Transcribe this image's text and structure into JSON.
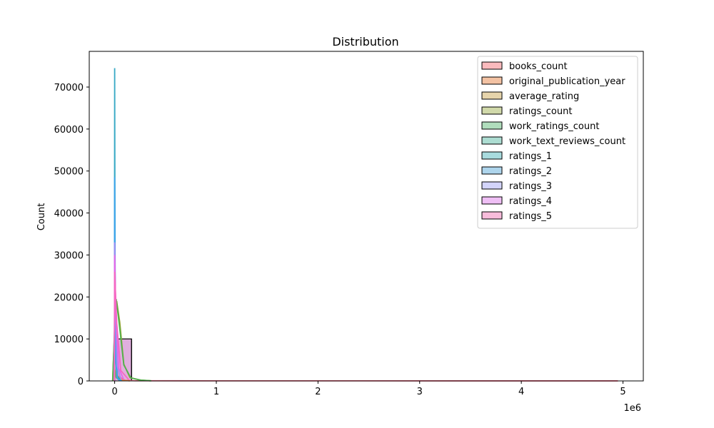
{
  "chart_data": {
    "type": "bar",
    "title": "Distribution",
    "xlabel": "",
    "ylabel": "Count",
    "x_offset_label": "1e6",
    "xlim": [
      -250000,
      5200000
    ],
    "ylim": [
      0,
      78500
    ],
    "x_ticks": [
      {
        "value": 0,
        "label": "0"
      },
      {
        "value": 1000000,
        "label": "1"
      },
      {
        "value": 2000000,
        "label": "2"
      },
      {
        "value": 3000000,
        "label": "3"
      },
      {
        "value": 4000000,
        "label": "4"
      },
      {
        "value": 5000000,
        "label": "5"
      }
    ],
    "y_ticks": [
      {
        "value": 0,
        "label": "0"
      },
      {
        "value": 10000,
        "label": "10000"
      },
      {
        "value": 20000,
        "label": "20000"
      },
      {
        "value": 30000,
        "label": "30000"
      },
      {
        "value": 40000,
        "label": "40000"
      },
      {
        "value": 50000,
        "label": "50000"
      },
      {
        "value": 60000,
        "label": "60000"
      },
      {
        "value": 70000,
        "label": "70000"
      }
    ],
    "grid": false,
    "legend_position": "top-right",
    "series": [
      {
        "name": "books_count",
        "color": "#f8a3a7",
        "line_color": "#f77189",
        "bars": [
          {
            "x0": 0,
            "x1": 165000,
            "count": 320
          },
          {
            "x0": 165000,
            "x1": 4950000,
            "count": 0
          }
        ],
        "kde": [
          [
            -10000,
            0
          ],
          [
            0,
            9000
          ],
          [
            30000,
            1200
          ],
          [
            100000,
            150
          ],
          [
            200000,
            40
          ],
          [
            1000000,
            20
          ],
          [
            4950000,
            10
          ]
        ]
      },
      {
        "name": "original_publication_year",
        "color": "#efae84",
        "line_color": "#e98a3c",
        "bars": [
          {
            "x0": 0,
            "x1": 165000,
            "count": 9950
          }
        ],
        "kde": [
          [
            -5000,
            0
          ],
          [
            0,
            2800
          ],
          [
            20000,
            1200
          ],
          [
            60000,
            200
          ],
          [
            150000,
            20
          ]
        ]
      },
      {
        "name": "average_rating",
        "color": "#ddc58f",
        "line_color": "#bb9832",
        "bars": [
          {
            "x0": 0,
            "x1": 165000,
            "count": 10000
          }
        ],
        "kde": [
          [
            -5000,
            0
          ],
          [
            0,
            2500
          ],
          [
            15000,
            800
          ],
          [
            50000,
            80
          ]
        ]
      },
      {
        "name": "ratings_count",
        "color": "#c2cc8e",
        "line_color": "#97a431",
        "bars": [
          {
            "x0": 0,
            "x1": 165000,
            "count": 9500
          }
        ],
        "kde": [
          [
            -20000,
            0
          ],
          [
            0,
            12000
          ],
          [
            20000,
            19000
          ],
          [
            50000,
            14000
          ],
          [
            90000,
            4000
          ],
          [
            150000,
            800
          ],
          [
            250000,
            200
          ],
          [
            350000,
            40
          ]
        ]
      },
      {
        "name": "work_ratings_count",
        "color": "#95d1a6",
        "line_color": "#50b14e",
        "bars": [
          {
            "x0": 0,
            "x1": 165000,
            "count": 9500
          }
        ],
        "kde": [
          [
            -20000,
            0
          ],
          [
            0,
            13000
          ],
          [
            15000,
            19500
          ],
          [
            45000,
            13500
          ],
          [
            90000,
            3800
          ],
          [
            160000,
            700
          ],
          [
            260000,
            180
          ],
          [
            360000,
            30
          ]
        ]
      },
      {
        "name": "work_text_reviews_count",
        "color": "#91d2c3",
        "line_color": "#36ad8b",
        "bars": [
          {
            "x0": 0,
            "x1": 165000,
            "count": 10000
          }
        ],
        "kde": [
          [
            -5000,
            0
          ],
          [
            0,
            15000
          ],
          [
            8000,
            6000
          ],
          [
            25000,
            1200
          ],
          [
            60000,
            150
          ]
        ]
      },
      {
        "name": "ratings_1",
        "color": "#8bcfd3",
        "line_color": "#38a9c5",
        "bars": [
          {
            "x0": 0,
            "x1": 165000,
            "count": 10000
          }
        ],
        "kde": [
          [
            -2000,
            0
          ],
          [
            0,
            74500
          ],
          [
            3000,
            35000
          ],
          [
            8000,
            8000
          ],
          [
            20000,
            800
          ],
          [
            50000,
            50
          ]
        ]
      },
      {
        "name": "ratings_2",
        "color": "#93c7e6",
        "line_color": "#3ba3ec",
        "bars": [
          {
            "x0": 0,
            "x1": 165000,
            "count": 10000
          }
        ],
        "kde": [
          [
            -2000,
            0
          ],
          [
            0,
            48500
          ],
          [
            4000,
            25000
          ],
          [
            12000,
            5000
          ],
          [
            30000,
            500
          ],
          [
            70000,
            40
          ]
        ]
      },
      {
        "name": "ratings_3",
        "color": "#c4c5f8",
        "line_color": "#a48cf4",
        "bars": [
          {
            "x0": 0,
            "x1": 165000,
            "count": 10000
          }
        ],
        "kde": [
          [
            -3000,
            0
          ],
          [
            0,
            33000
          ],
          [
            8000,
            18000
          ],
          [
            25000,
            3500
          ],
          [
            60000,
            400
          ]
        ]
      },
      {
        "name": "ratings_4",
        "color": "#eaaaf2",
        "line_color": "#e866e8",
        "bars": [
          {
            "x0": 0,
            "x1": 165000,
            "count": 10000
          }
        ],
        "kde": [
          [
            -3000,
            0
          ],
          [
            0,
            30000
          ],
          [
            12000,
            16000
          ],
          [
            40000,
            3000
          ],
          [
            90000,
            300
          ]
        ]
      },
      {
        "name": "ratings_5",
        "color": "#f6a6cf",
        "line_color": "#f668c2",
        "bars": [
          {
            "x0": 0,
            "x1": 165000,
            "count": 10000
          }
        ],
        "kde": [
          [
            -4000,
            0
          ],
          [
            0,
            26000
          ],
          [
            20000,
            14000
          ],
          [
            60000,
            2500
          ],
          [
            140000,
            250
          ]
        ]
      }
    ]
  }
}
